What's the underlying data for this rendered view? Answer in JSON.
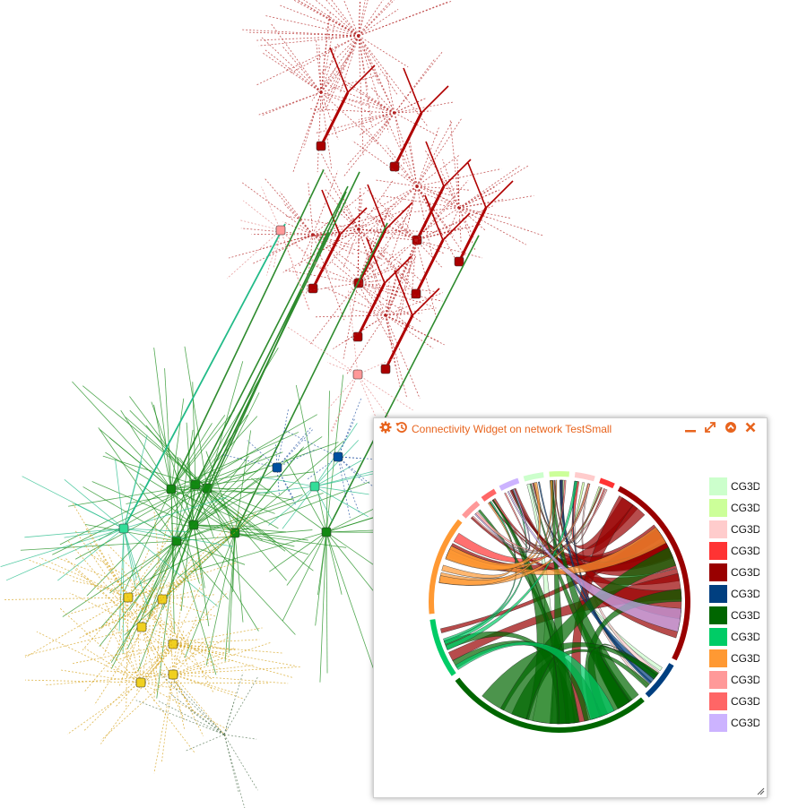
{
  "widget": {
    "title": "Connectivity Widget on network TestSmall",
    "accent": "#e8641e"
  },
  "legend": [
    {
      "label": "CG3D",
      "color": "#ccffcc"
    },
    {
      "label": "CG3D",
      "color": "#ccff99"
    },
    {
      "label": "CG3D",
      "color": "#ffcccc"
    },
    {
      "label": "CG3D",
      "color": "#ff3333"
    },
    {
      "label": "CG3D",
      "color": "#990000"
    },
    {
      "label": "CG3D",
      "color": "#003f80"
    },
    {
      "label": "CG3D",
      "color": "#006600"
    },
    {
      "label": "CG3D",
      "color": "#00cc66"
    },
    {
      "label": "CG3D",
      "color": "#ff9933"
    },
    {
      "label": "CG3D",
      "color": "#ff9999"
    },
    {
      "label": "CG3D",
      "color": "#ff6666"
    },
    {
      "label": "CG3D",
      "color": "#ccb3ff"
    }
  ],
  "chord": {
    "groups": [
      {
        "color": "#ccffcc",
        "value": 4
      },
      {
        "color": "#ccff99",
        "value": 4
      },
      {
        "color": "#ffcccc",
        "value": 4
      },
      {
        "color": "#ff3333",
        "value": 3
      },
      {
        "color": "#990000",
        "value": 40
      },
      {
        "color": "#003f80",
        "value": 8
      },
      {
        "color": "#006600",
        "value": 42
      },
      {
        "color": "#00cc66",
        "value": 12
      },
      {
        "color": "#ff9933",
        "value": 20
      },
      {
        "color": "#ff9999",
        "value": 4
      },
      {
        "color": "#ff6666",
        "value": 3
      },
      {
        "color": "#ccb3ff",
        "value": 4
      }
    ]
  }
}
